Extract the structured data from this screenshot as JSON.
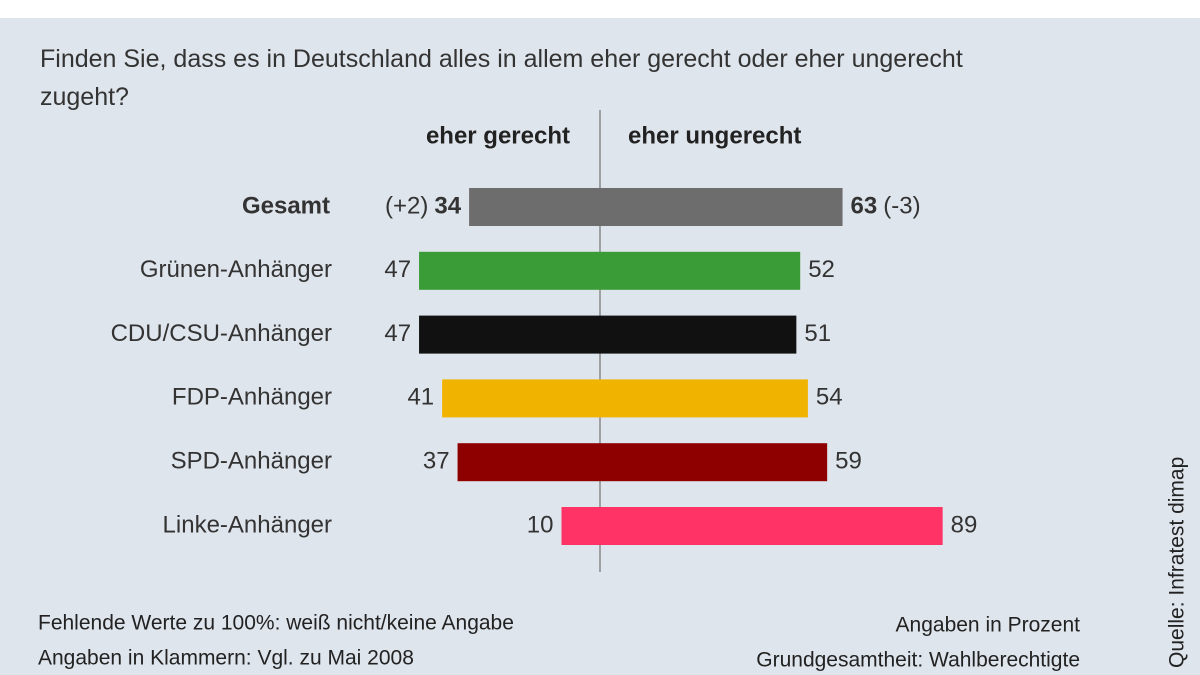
{
  "chart_data": {
    "type": "diverging-bar",
    "question": "Finden Sie, dass es in Deutschland alles in allem eher gerecht oder eher ungerecht zugeht?",
    "categories": [
      "Gesamt",
      "Grünen-Anhänger",
      "CDU/CSU-Anhänger",
      "FDP-Anhänger",
      "SPD-Anhänger",
      "Linke-Anhänger"
    ],
    "colors": [
      "#6d6d6d",
      "#3a9c37",
      "#111111",
      "#f0b400",
      "#8e0000",
      "#ff3366"
    ],
    "series": [
      {
        "name": "eher gerecht",
        "side": "left",
        "values": [
          34,
          47,
          47,
          41,
          37,
          10
        ],
        "change_label": "(+2)"
      },
      {
        "name": "eher ungerecht",
        "side": "right",
        "values": [
          63,
          52,
          51,
          54,
          59,
          89
        ],
        "change_label": "(-3)"
      }
    ],
    "notes": [
      "Fehlende Werte zu 100%: weiß nicht/keine Angabe",
      "Angaben in Klammern: Vgl. zu Mai 2008"
    ],
    "unit_note": "Angaben in Prozent",
    "population_note": "Grundgesamtheit: Wahlberechtigte",
    "source": "Quelle: Infratest dimap"
  }
}
